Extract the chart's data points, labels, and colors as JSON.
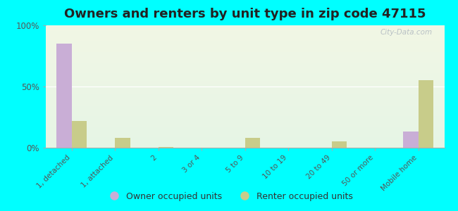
{
  "title": "Owners and renters by unit type in zip code 47115",
  "categories": [
    "1, detached",
    "1, attached",
    "2",
    "3 or 4",
    "5 to 9",
    "10 to 19",
    "20 to 49",
    "50 or more",
    "Mobile home"
  ],
  "owner_values": [
    85,
    0,
    0,
    0,
    0,
    0,
    0,
    0,
    13
  ],
  "renter_values": [
    22,
    8,
    0.5,
    0,
    8,
    0,
    5,
    0,
    55
  ],
  "owner_color": "#c9aed6",
  "renter_color": "#c8cc8a",
  "background_color": "#00ffff",
  "ylim": [
    0,
    100
  ],
  "yticks": [
    0,
    50,
    100
  ],
  "ytick_labels": [
    "0%",
    "50%",
    "100%"
  ],
  "legend_owner": "Owner occupied units",
  "legend_renter": "Renter occupied units",
  "bar_width": 0.35,
  "title_fontsize": 13,
  "watermark": "City-Data.com"
}
